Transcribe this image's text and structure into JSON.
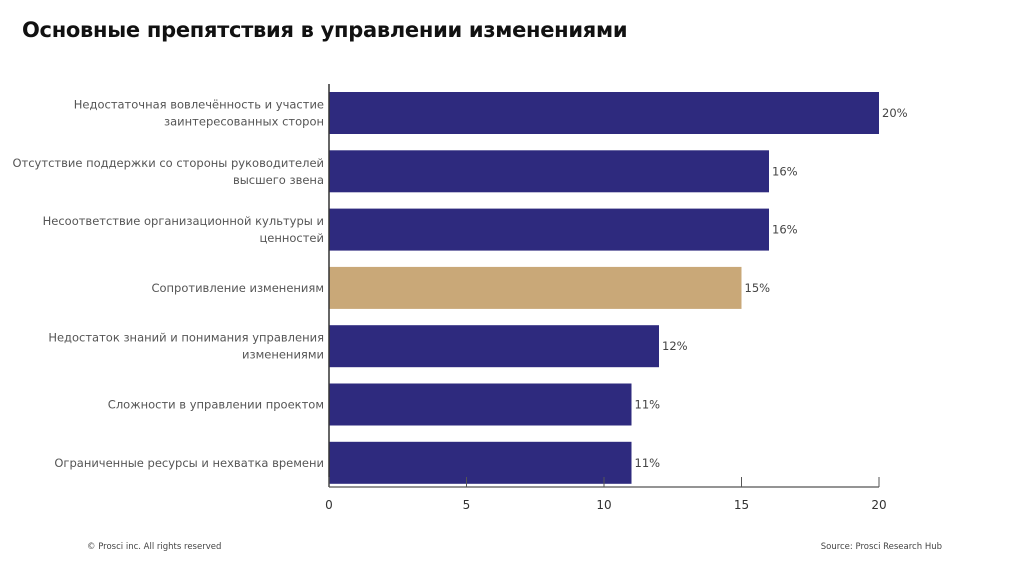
{
  "chart_data": {
    "type": "bar",
    "orientation": "horizontal",
    "title": "Основные препятствия в управлении изменениями",
    "categories": [
      [
        "Недостаточная вовлечённость и участие",
        "заинтересованных сторон"
      ],
      [
        "Отсутствие поддержки со стороны руководителей",
        "высшего звена"
      ],
      [
        "Несоответствие организационной культуры и",
        "ценностей"
      ],
      [
        "Сопротивление изменениям"
      ],
      [
        "Недостаток знаний и понимания управления",
        "изменениями"
      ],
      [
        "Сложности в управлении проектом"
      ],
      [
        "Ограниченные ресурсы и нехватка времени"
      ]
    ],
    "values": [
      20,
      16,
      16,
      15,
      12,
      11,
      11
    ],
    "data_labels": [
      "20%",
      "16%",
      "16%",
      "15%",
      "12%",
      "11%",
      "11%"
    ],
    "highlight_index": 3,
    "xlim": [
      0,
      20
    ],
    "xticks": [
      0,
      5,
      10,
      15,
      20
    ],
    "grid": false,
    "colors": {
      "bar": "#2e2a7e",
      "highlight": "#c9a878"
    }
  },
  "footer": {
    "copyright": "© Prosci inc. All rights reserved",
    "source": "Source: Prosci Research Hub"
  }
}
